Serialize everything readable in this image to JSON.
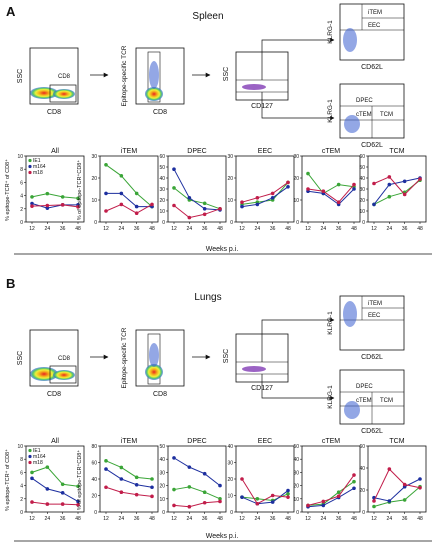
{
  "panels": [
    {
      "label": "A",
      "tissue": "Spleen",
      "flow": {
        "ssc": "SSC",
        "cd8": "CD8",
        "gate_label": "CD8",
        "tcr": "Epitope-specific TCR",
        "cd127": "CD127",
        "klrg1": "KLRG-1",
        "cd62l": "CD62L",
        "upper_gates": [
          "iTEM",
          "EEC"
        ],
        "lower_gates": [
          "DPEC",
          "cTEM",
          "TCM"
        ]
      },
      "ylabel_all": "% epitope-TCR⁺ of CD8⁺",
      "ylabel_subsets": "% of epitope-TCR⁺CD8⁺",
      "xlabel": "Weeks p.i.",
      "legend": [
        "IE1",
        "m164",
        "m18"
      ],
      "chart_data": [
        {
          "type": "line",
          "title": "All",
          "categories": [
            "12",
            "24",
            "36",
            "48"
          ],
          "ylim": [
            0,
            10
          ],
          "yticks": [
            "0",
            "2",
            "4",
            "6",
            "8",
            "10"
          ],
          "series": [
            {
              "name": "IE1",
              "values": [
                3.8,
                4.3,
                3.8,
                3.6
              ]
            },
            {
              "name": "m164",
              "values": [
                2.8,
                2.1,
                2.6,
                2.6
              ]
            },
            {
              "name": "m18",
              "values": [
                2.4,
                2.5,
                2.6,
                2.3
              ]
            }
          ]
        },
        {
          "type": "line",
          "title": "iTEM",
          "categories": [
            "12",
            "24",
            "36",
            "48"
          ],
          "ylim": [
            0,
            30
          ],
          "yticks": [
            "0",
            "10",
            "20",
            "30"
          ],
          "series": [
            {
              "name": "IE1",
              "values": [
                26,
                21,
                13,
                7
              ]
            },
            {
              "name": "m164",
              "values": [
                13,
                13,
                7,
                7
              ]
            },
            {
              "name": "m18",
              "values": [
                5,
                8,
                4,
                8
              ]
            }
          ]
        },
        {
          "type": "line",
          "title": "DPEC",
          "categories": [
            "12",
            "24",
            "36",
            "48"
          ],
          "ylim": [
            0,
            60
          ],
          "yticks": [
            "0",
            "10",
            "20",
            "30",
            "40",
            "50",
            "60"
          ],
          "series": [
            {
              "name": "IE1",
              "values": [
                31,
                20,
                17,
                12
              ]
            },
            {
              "name": "m164",
              "values": [
                48,
                22,
                12,
                11
              ]
            },
            {
              "name": "m18",
              "values": [
                15,
                4,
                7,
                12
              ]
            }
          ]
        },
        {
          "type": "line",
          "title": "EEC",
          "categories": [
            "12",
            "24",
            "36",
            "48"
          ],
          "ylim": [
            0,
            30
          ],
          "yticks": [
            "0",
            "10",
            "20",
            "30"
          ],
          "series": [
            {
              "name": "IE1",
              "values": [
                8,
                9,
                10,
                18
              ]
            },
            {
              "name": "m164",
              "values": [
                7,
                8,
                11,
                16
              ]
            },
            {
              "name": "m18",
              "values": [
                9,
                11,
                13,
                18
              ]
            }
          ]
        },
        {
          "type": "line",
          "title": "cTEM",
          "categories": [
            "12",
            "24",
            "36",
            "48"
          ],
          "ylim": [
            0,
            30
          ],
          "yticks": [
            "0",
            "10",
            "20",
            "30"
          ],
          "series": [
            {
              "name": "IE1",
              "values": [
                22,
                13,
                17,
                16
              ]
            },
            {
              "name": "m164",
              "values": [
                14,
                13,
                8,
                15
              ]
            },
            {
              "name": "m18",
              "values": [
                15,
                14,
                9,
                17
              ]
            }
          ]
        },
        {
          "type": "line",
          "title": "TCM",
          "categories": [
            "12",
            "24",
            "36",
            "48"
          ],
          "ylim": [
            0,
            60
          ],
          "yticks": [
            "0",
            "10",
            "20",
            "30",
            "40",
            "50",
            "60"
          ],
          "series": [
            {
              "name": "IE1",
              "values": [
                16,
                23,
                27,
                38
              ]
            },
            {
              "name": "m164",
              "values": [
                16,
                34,
                37,
                40
              ]
            },
            {
              "name": "m18",
              "values": [
                35,
                41,
                25,
                39
              ]
            }
          ]
        }
      ]
    },
    {
      "label": "B",
      "tissue": "Lungs",
      "flow": {
        "ssc": "SSC",
        "cd8": "CD8",
        "gate_label": "CD8",
        "tcr": "Epitope-specific TCR",
        "cd127": "CD127",
        "klrg1": "KLRG-1",
        "cd62l": "CD62L",
        "upper_gates": [
          "iTEM",
          "EEC"
        ],
        "lower_gates": [
          "DPEC",
          "cTEM",
          "TCM"
        ]
      },
      "ylabel_all": "% epitope-TCR⁺ of CD8⁺",
      "ylabel_subsets": "% of epitope-TCR⁺CD8⁺",
      "xlabel": "Weeks p.i.",
      "legend": [
        "IE1",
        "m164",
        "m18"
      ],
      "chart_data": [
        {
          "type": "line",
          "title": "All",
          "categories": [
            "12",
            "24",
            "36",
            "48"
          ],
          "ylim": [
            0,
            10
          ],
          "yticks": [
            "0",
            "2",
            "4",
            "6",
            "8",
            "10"
          ],
          "series": [
            {
              "name": "IE1",
              "values": [
                6.0,
                6.8,
                4.2,
                3.9
              ]
            },
            {
              "name": "m164",
              "values": [
                5.1,
                3.5,
                2.9,
                1.6
              ]
            },
            {
              "name": "m18",
              "values": [
                1.5,
                1.2,
                1.2,
                1.1
              ]
            }
          ]
        },
        {
          "type": "line",
          "title": "iTEM",
          "categories": [
            "12",
            "24",
            "36",
            "48"
          ],
          "ylim": [
            0,
            80
          ],
          "yticks": [
            "0",
            "20",
            "40",
            "60",
            "80"
          ],
          "series": [
            {
              "name": "IE1",
              "values": [
                62,
                54,
                42,
                40
              ]
            },
            {
              "name": "m164",
              "values": [
                52,
                40,
                33,
                30
              ]
            },
            {
              "name": "m18",
              "values": [
                30,
                24,
                21,
                19
              ]
            }
          ]
        },
        {
          "type": "line",
          "title": "DPEC",
          "categories": [
            "12",
            "24",
            "36",
            "48"
          ],
          "ylim": [
            0,
            50
          ],
          "yticks": [
            "0",
            "10",
            "20",
            "30",
            "40",
            "50"
          ],
          "series": [
            {
              "name": "IE1",
              "values": [
                17,
                19,
                15,
                10
              ]
            },
            {
              "name": "m164",
              "values": [
                41,
                34,
                29,
                20
              ]
            },
            {
              "name": "m18",
              "values": [
                5,
                4,
                7,
                8
              ]
            }
          ]
        },
        {
          "type": "line",
          "title": "EEC",
          "categories": [
            "12",
            "24",
            "36",
            "48"
          ],
          "ylim": [
            0,
            40
          ],
          "yticks": [
            "0",
            "10",
            "20",
            "30",
            "40"
          ],
          "series": [
            {
              "name": "IE1",
              "values": [
                9,
                8,
                7,
                11
              ]
            },
            {
              "name": "m164",
              "values": [
                9,
                5,
                6,
                13
              ]
            },
            {
              "name": "m18",
              "values": [
                20,
                5,
                10,
                9
              ]
            }
          ]
        },
        {
          "type": "line",
          "title": "cTEM",
          "categories": [
            "12",
            "24",
            "36",
            "48"
          ],
          "ylim": [
            0,
            50
          ],
          "yticks": [
            "0",
            "10",
            "20",
            "30",
            "40",
            "50"
          ],
          "series": [
            {
              "name": "IE1",
              "values": [
                5,
                6,
                15,
                23
              ]
            },
            {
              "name": "m164",
              "values": [
                4,
                5,
                11,
                18
              ]
            },
            {
              "name": "m18",
              "values": [
                5,
                8,
                12,
                28
              ]
            }
          ]
        },
        {
          "type": "line",
          "title": "TCM",
          "categories": [
            "12",
            "24",
            "36",
            "48"
          ],
          "ylim": [
            0,
            60
          ],
          "yticks": [
            "0",
            "20",
            "40",
            "60"
          ],
          "series": [
            {
              "name": "IE1",
              "values": [
                5,
                9,
                11,
                23
              ]
            },
            {
              "name": "m164",
              "values": [
                13,
                10,
                23,
                30
              ]
            },
            {
              "name": "m18",
              "values": [
                10,
                39,
                25,
                22
              ]
            }
          ]
        }
      ]
    }
  ],
  "colors": {
    "IE1": "#3aa537",
    "m164": "#1d2f9f",
    "m18": "#c11d4a"
  }
}
